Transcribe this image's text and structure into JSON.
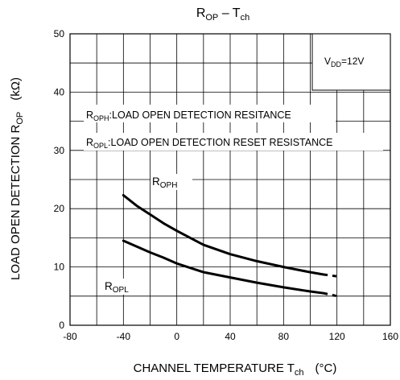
{
  "chart_data": {
    "type": "line",
    "title": {
      "main": "R",
      "sub": "OP",
      "rest": " – T",
      "sub2": "ch"
    },
    "xlabel": {
      "main": "CHANNEL TEMPERATURE   T",
      "sub": "ch",
      "unit": "(°C)"
    },
    "ylabel": {
      "main": "LOAD OPEN DETECTION  R",
      "sub": "OP",
      "unit": "(kΩ)"
    },
    "xlim": [
      -80,
      160
    ],
    "ylim": [
      0,
      50
    ],
    "xticks": [
      -80,
      -40,
      0,
      40,
      80,
      120,
      160
    ],
    "yticks": [
      0,
      10,
      20,
      30,
      40,
      50
    ],
    "grid": true,
    "condition_box": {
      "main": "V",
      "sub": "DD",
      "rest": "=12V"
    },
    "legend_notes": [
      {
        "main": "R",
        "sub": "OPH",
        "rest": ":LOAD OPEN DETECTION RESITANCE"
      },
      {
        "main": "R",
        "sub": "OPL",
        "rest": ":LOAD OPEN DETECTION RESET RESISTANCE"
      }
    ],
    "series": [
      {
        "name": "ROPH",
        "label": {
          "main": "R",
          "sub": "OPH"
        },
        "points": [
          [
            -40,
            22.3
          ],
          [
            -30,
            20.5
          ],
          [
            -20,
            19.0
          ],
          [
            -10,
            17.5
          ],
          [
            0,
            16.2
          ],
          [
            10,
            15.0
          ],
          [
            20,
            13.8
          ],
          [
            40,
            12.2
          ],
          [
            60,
            11.0
          ],
          [
            80,
            10.0
          ],
          [
            100,
            9.1
          ],
          [
            110,
            8.7
          ]
        ],
        "extrapolated": [
          [
            110,
            8.7
          ],
          [
            120,
            8.4
          ]
        ]
      },
      {
        "name": "ROPL",
        "label": {
          "main": "R",
          "sub": "OPL"
        },
        "points": [
          [
            -40,
            14.5
          ],
          [
            -30,
            13.5
          ],
          [
            -20,
            12.5
          ],
          [
            -10,
            11.6
          ],
          [
            0,
            10.6
          ],
          [
            20,
            9.1
          ],
          [
            40,
            8.2
          ],
          [
            60,
            7.3
          ],
          [
            80,
            6.5
          ],
          [
            100,
            5.8
          ],
          [
            110,
            5.5
          ]
        ],
        "extrapolated": [
          [
            110,
            5.5
          ],
          [
            120,
            5.0
          ]
        ]
      }
    ]
  }
}
